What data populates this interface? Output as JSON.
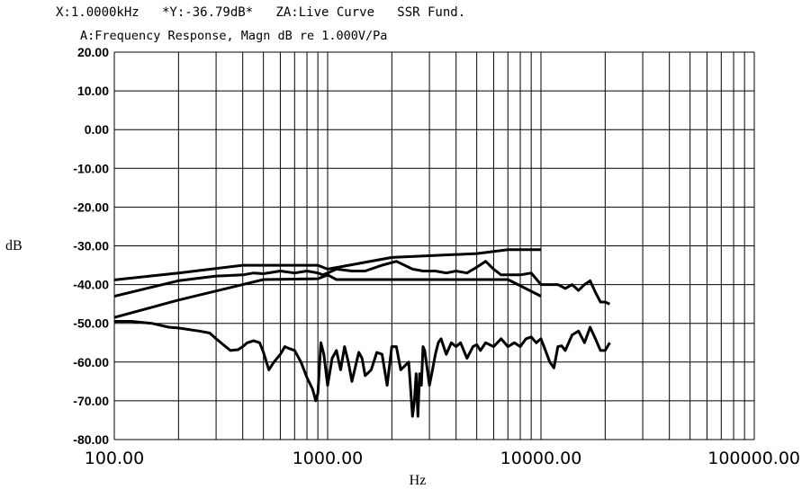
{
  "header": {
    "status_line": "X:1.0000kHz   *Y:-36.79dB*   ZA:Live Curve   SSR Fund.",
    "subtitle": "A:Frequency Response, Magn dB re 1.000V/Pa"
  },
  "chart_data": {
    "type": "line",
    "title": "A:Frequency Response, Magn dB re 1.000V/Pa",
    "xlabel": "Hz",
    "ylabel": "dB",
    "xscale": "log",
    "xlim": [
      100,
      100000
    ],
    "ylim": [
      -80,
      20
    ],
    "grid": true,
    "x_ticks": [
      "100.00",
      "1000.00",
      "10000.00",
      "100000.00"
    ],
    "y_ticks": [
      "20.00",
      "10.00",
      "0.00",
      "-10.00",
      "-20.00",
      "-30.00",
      "-40.00",
      "-50.00",
      "-60.00",
      "-70.00",
      "-80.00"
    ],
    "series": [
      {
        "x": [
          100,
          200,
          400,
          900,
          1000,
          2000,
          5000,
          7000,
          10000
        ],
        "y": [
          -38.8,
          -37,
          -35,
          -35,
          -36,
          -33,
          -32,
          -31,
          -31
        ]
      },
      {
        "x": [
          100,
          200,
          300,
          400,
          450,
          500,
          600,
          700,
          800,
          900,
          950,
          1000,
          1100,
          1300,
          1500,
          1800,
          2100,
          2500,
          2800,
          3200,
          3600,
          4000,
          4500,
          5000,
          5500,
          6000,
          6500,
          7000,
          8000,
          9000,
          10000,
          11000,
          12000,
          13000,
          14000,
          15000,
          16000,
          17000,
          18000,
          19000,
          20000,
          21000
        ],
        "y": [
          -43,
          -39,
          -37.8,
          -37.5,
          -37,
          -37.2,
          -36.5,
          -37,
          -36.5,
          -37,
          -37.5,
          -37,
          -36,
          -36.5,
          -36.5,
          -35,
          -34,
          -36,
          -36.5,
          -36.5,
          -37,
          -36.5,
          -37,
          -35.5,
          -34,
          -36,
          -37.5,
          -37.5,
          -37.5,
          -37,
          -40,
          -40,
          -40,
          -41,
          -40,
          -41.5,
          -40,
          -39,
          -42,
          -44.5,
          -44.5,
          -45
        ]
      },
      {
        "x": [
          100,
          200,
          400,
          500,
          900,
          1000,
          1100,
          2000,
          7000,
          10000
        ],
        "y": [
          -48.5,
          -44,
          -40,
          -38.7,
          -38.5,
          -37.5,
          -38.7,
          -38.7,
          -38.7,
          -43
        ]
      },
      {
        "x": [
          100,
          120,
          150,
          180,
          200,
          250,
          280,
          300,
          350,
          380,
          400,
          420,
          450,
          480,
          500,
          530,
          560,
          600,
          630,
          660,
          700,
          750,
          800,
          850,
          880,
          900,
          930,
          960,
          1000,
          1050,
          1100,
          1150,
          1200,
          1250,
          1300,
          1400,
          1450,
          1500,
          1600,
          1700,
          1800,
          1900,
          2000,
          2100,
          2200,
          2300,
          2400,
          2500,
          2550,
          2600,
          2650,
          2700,
          2750,
          2800,
          2850,
          2900,
          3000,
          3100,
          3200,
          3300,
          3400,
          3600,
          3800,
          4000,
          4200,
          4500,
          4800,
          5000,
          5200,
          5500,
          6000,
          6500,
          7000,
          7500,
          8000,
          8500,
          9000,
          9500,
          10000,
          10500,
          11000,
          11500,
          12000,
          12500,
          13000,
          14000,
          15000,
          16000,
          17000,
          18000,
          19000,
          20000,
          21000
        ],
        "y": [
          -49.5,
          -49.5,
          -50,
          -51,
          -51.2,
          -52,
          -52.5,
          -54,
          -57,
          -56.8,
          -56,
          -55,
          -54.5,
          -55,
          -57.5,
          -62,
          -60,
          -58,
          -56,
          -56.5,
          -57,
          -60,
          -64,
          -67,
          -70,
          -68,
          -55,
          -58,
          -66,
          -59,
          -57,
          -62,
          -56,
          -60,
          -65,
          -57.5,
          -59,
          -63.5,
          -62,
          -57.5,
          -58,
          -66,
          -56,
          -56,
          -62,
          -61,
          -60,
          -74,
          -70,
          -63,
          -74,
          -63,
          -66,
          -56,
          -57,
          -60,
          -66,
          -62,
          -58,
          -55,
          -54,
          -58,
          -55,
          -56,
          -55,
          -59,
          -56,
          -55.5,
          -57,
          -55,
          -56,
          -54,
          -56,
          -55,
          -56,
          -54,
          -53.5,
          -55,
          -54,
          -57,
          -60,
          -61.5,
          -56,
          -55.8,
          -57,
          -53,
          -52,
          -55,
          -51,
          -54,
          -57,
          -57,
          -55
        ]
      }
    ]
  }
}
